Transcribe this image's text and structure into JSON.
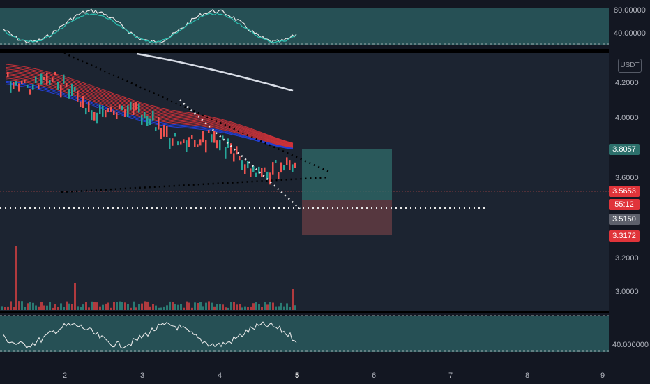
{
  "currency_button": "USDT",
  "colors": {
    "background": "#131722",
    "panel": "#1f2f3a",
    "oscillator_band": "#2a5a5e",
    "ribbon_red": "#e0343a",
    "ribbon_blue": "#2340d8",
    "up_candle": "#26a69a",
    "down_candle": "#ef5350",
    "target_zone": "#2f5d5e",
    "stop_zone": "#5b3a3e",
    "trendline": "#000000",
    "dotted_white": "#e8e8e8",
    "ma_line": "#d8dde6"
  },
  "price_axis": {
    "ticks": [
      "4.2000",
      "4.0000",
      "3.6000",
      "3.2000",
      "3.0000"
    ],
    "tags": {
      "target": "3.8057",
      "current": "3.5653",
      "countdown": "55:12",
      "level": "3.5150",
      "stop": "3.3172"
    }
  },
  "top_oscillator": {
    "ticks": [
      "80.00000",
      "40.00000"
    ]
  },
  "bottom_oscillator": {
    "ticks": [
      "40.000000"
    ]
  },
  "time_axis": {
    "ticks": [
      "2",
      "3",
      "4",
      "5",
      "6",
      "7",
      "8",
      "9"
    ]
  }
}
